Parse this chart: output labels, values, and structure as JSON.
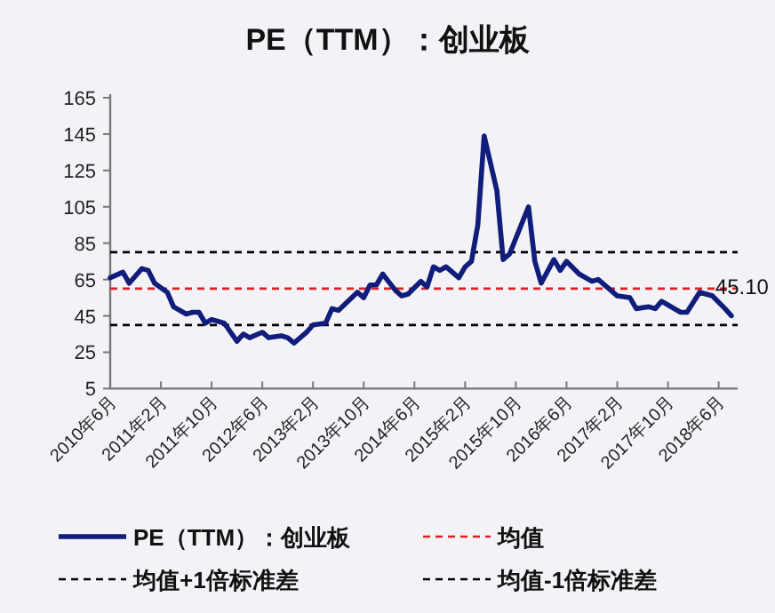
{
  "chart_data": {
    "type": "line",
    "title": "PE（TTM）：创业板",
    "legend": "bottom",
    "grid": false,
    "xlim": [
      "2010-06",
      "2018-09"
    ],
    "ylim": [
      5,
      165
    ],
    "yticks": [
      5,
      25,
      45,
      65,
      85,
      105,
      125,
      145,
      165
    ],
    "xticks": [
      {
        "value": "2010-06",
        "label": "2010年6月"
      },
      {
        "value": "2011-02",
        "label": "2011年2月"
      },
      {
        "value": "2011-10",
        "label": "2011年10月"
      },
      {
        "value": "2012-06",
        "label": "2012年6月"
      },
      {
        "value": "2013-02",
        "label": "2013年2月"
      },
      {
        "value": "2013-10",
        "label": "2013年10月"
      },
      {
        "value": "2014-06",
        "label": "2014年6月"
      },
      {
        "value": "2015-02",
        "label": "2015年2月"
      },
      {
        "value": "2015-10",
        "label": "2015年10月"
      },
      {
        "value": "2016-06",
        "label": "2016年6月"
      },
      {
        "value": "2017-02",
        "label": "2017年2月"
      },
      {
        "value": "2017-10",
        "label": "2017年10月"
      },
      {
        "value": "2018-06",
        "label": "2018年6月"
      }
    ],
    "series": [
      {
        "name": "PE（TTM）：创业板",
        "color": "#111d7a",
        "line_style": "solid",
        "x": [
          "2010-06",
          "2010-08",
          "2010-09",
          "2010-11",
          "2010-12",
          "2011-01",
          "2011-03",
          "2011-04",
          "2011-06",
          "2011-07",
          "2011-08",
          "2011-09",
          "2011-10",
          "2011-12",
          "2012-02",
          "2012-03",
          "2012-04",
          "2012-06",
          "2012-07",
          "2012-09",
          "2012-10",
          "2012-11",
          "2013-01",
          "2013-02",
          "2013-04",
          "2013-05",
          "2013-06",
          "2013-09",
          "2013-10",
          "2013-11",
          "2013-12",
          "2014-01",
          "2014-03",
          "2014-04",
          "2014-05",
          "2014-07",
          "2014-08",
          "2014-09",
          "2014-10",
          "2014-11",
          "2015-01",
          "2015-02",
          "2015-03",
          "2015-04",
          "2015-05",
          "2015-07",
          "2015-08",
          "2015-09",
          "2015-12",
          "2016-01",
          "2016-02",
          "2016-04",
          "2016-05",
          "2016-06",
          "2016-08",
          "2016-10",
          "2016-11",
          "2017-01",
          "2017-02",
          "2017-04",
          "2017-05",
          "2017-07",
          "2017-08",
          "2017-09",
          "2017-10",
          "2017-12",
          "2018-01",
          "2018-03",
          "2018-05",
          "2018-07",
          "2018-08"
        ],
        "values": [
          66,
          69,
          63,
          71,
          70,
          63,
          58,
          50,
          46,
          47,
          47,
          41,
          43,
          41,
          31,
          35,
          33,
          36,
          33,
          34,
          33,
          30,
          36,
          40,
          41,
          49,
          48,
          58,
          55,
          62,
          62,
          68,
          59,
          56,
          57,
          64,
          61,
          72,
          70,
          72,
          66,
          72,
          75,
          95,
          144,
          114,
          76,
          79,
          105,
          75,
          63,
          76,
          70,
          75,
          68,
          64,
          65,
          59,
          56,
          55,
          49,
          50,
          49,
          53,
          51,
          47,
          47,
          58,
          56,
          49,
          45.1
        ]
      }
    ],
    "ref_lines": [
      {
        "axis": "y",
        "value": 60,
        "label": "均值",
        "color": "#e02020",
        "line_style": "dashed"
      },
      {
        "axis": "y",
        "value": 80,
        "label": "均值+1倍标准差",
        "color": "#000000",
        "line_style": "dashed"
      },
      {
        "axis": "y",
        "value": 40,
        "label": "均值-1倍标准差",
        "color": "#000000",
        "line_style": "dashed"
      }
    ],
    "annotations": [
      {
        "text": "45.10",
        "x": "2018-08",
        "y": 45.1
      }
    ]
  }
}
